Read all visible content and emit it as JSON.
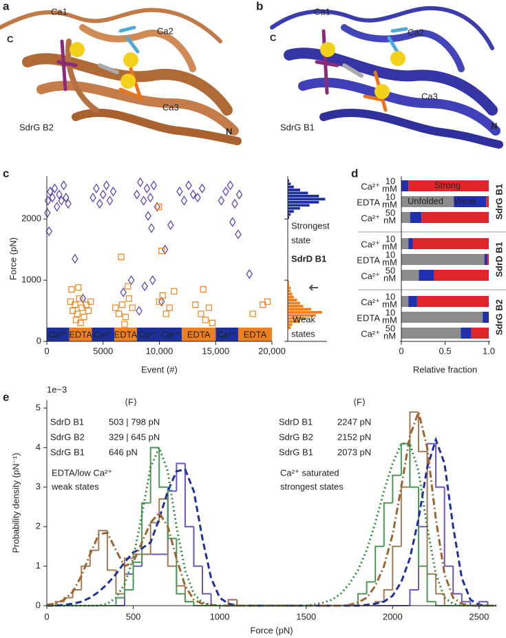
{
  "structures": [
    {
      "panel": "a",
      "labels": [
        {
          "text": "Ca1",
          "color": "#8b2a7a"
        },
        {
          "text": "Ca2",
          "color": "#4fa9d6"
        },
        {
          "text": "C",
          "color": "#d8251d"
        },
        {
          "text": "Ca3",
          "color": "#e8741d"
        },
        {
          "text": "SdrG B2",
          "color": "#a0602e"
        },
        {
          "text": "N",
          "color": "#3a3a9a"
        }
      ]
    },
    {
      "panel": "b",
      "labels": [
        {
          "text": "Ca1",
          "color": "#8b2a7a"
        },
        {
          "text": "Ca2",
          "color": "#4fa9d6"
        },
        {
          "text": "C",
          "color": "#d8251d"
        },
        {
          "text": "Ca3",
          "color": "#e8741d"
        },
        {
          "text": "SdrG B1",
          "color": "#3a3a9a"
        },
        {
          "text": "N",
          "color": "#3a3a9a"
        }
      ]
    }
  ],
  "chart_data": [
    {
      "type": "scatter",
      "panel": "c",
      "xlabel": "Event (#)",
      "ylabel": "Force (pN)",
      "xlim": [
        0,
        20000
      ],
      "ylim": [
        0,
        2700
      ],
      "xticks": [
        0,
        5000,
        {
          "value": 10000,
          "label": "10,000"
        },
        {
          "value": 15000,
          "label": "15,000"
        },
        {
          "value": 20000,
          "label": "20,000"
        }
      ],
      "yticks": [
        0,
        1000,
        2000
      ],
      "series": [
        {
          "color": "#5a48b5",
          "marker": "diamond",
          "x": [
            100,
            300,
            500,
            700,
            900,
            1100,
            1300,
            1500,
            1700,
            1900,
            200,
            50,
            4100,
            4400,
            4700,
            5000,
            5300,
            5600,
            5900,
            8000,
            8300,
            8600,
            8900,
            9200,
            9500,
            9800,
            9000,
            9300,
            11800,
            12200,
            12600,
            13000,
            13400,
            13800,
            15500,
            15900,
            16300,
            16700,
            17100,
            16500,
            17000,
            6800,
            7500,
            8200,
            8700,
            9400,
            10200,
            10500,
            18000,
            3200,
            2500,
            11000
          ],
          "y": [
            2300,
            2450,
            2350,
            2500,
            2200,
            2400,
            2300,
            2550,
            2350,
            2250,
            1800,
            2100,
            2350,
            2500,
            2250,
            2400,
            2550,
            2300,
            2450,
            2400,
            2600,
            2300,
            2500,
            2350,
            2550,
            2200,
            2050,
            1850,
            2450,
            2300,
            2550,
            2400,
            2350,
            2500,
            2300,
            2450,
            2550,
            2250,
            2400,
            1950,
            1750,
            800,
            1000,
            500,
            900,
            1000,
            650,
            1500,
            1100,
            700,
            1350,
            1900
          ]
        },
        {
          "color": "#f08a24",
          "marker": "square",
          "x": [
            2100,
            2300,
            2500,
            2700,
            2900,
            3100,
            3300,
            3500,
            3700,
            3900,
            2200,
            2800,
            3000,
            2600,
            6100,
            6400,
            6700,
            7000,
            7300,
            7600,
            6600,
            7200,
            6900,
            10000,
            10300,
            10600,
            10900,
            10200,
            11300,
            13200,
            13700,
            14100,
            14400,
            13900,
            14700,
            18300,
            19200,
            19600,
            9950
          ],
          "y": [
            650,
            500,
            600,
            450,
            700,
            550,
            400,
            600,
            500,
            650,
            850,
            880,
            300,
            350,
            550,
            450,
            600,
            400,
            700,
            550,
            1380,
            900,
            280,
            650,
            750,
            450,
            550,
            1480,
            820,
            600,
            450,
            350,
            550,
            850,
            300,
            450,
            600,
            650,
            2200
          ]
        }
      ],
      "conditions": [
        {
          "label": "Ca²⁺",
          "start": 0,
          "end": 2000,
          "color": "#1c2f9a"
        },
        {
          "label": "EDTA",
          "start": 2000,
          "end": 4000,
          "color": "#f07f1d"
        },
        {
          "label": "Ca²⁺",
          "start": 4000,
          "end": 6000,
          "color": "#1c2f9a"
        },
        {
          "label": "EDTA",
          "start": 6000,
          "end": 8000,
          "color": "#f07f1d"
        },
        {
          "label": "Ca²⁺",
          "start": 8000,
          "end": 10000,
          "color": "#1c2f9a"
        },
        {
          "label": "Ca²⁺",
          "start": 10000,
          "end": 12000,
          "color": "#1c2f9a"
        },
        {
          "label": "EDTA",
          "start": 12000,
          "end": 15000,
          "color": "#f07f1d"
        },
        {
          "label": "Ca²⁺",
          "start": 15000,
          "end": 17000,
          "color": "#1c2f9a"
        },
        {
          "label": "EDTA",
          "start": 17000,
          "end": 20000,
          "color": "#f07f1d"
        }
      ]
    },
    {
      "type": "histogram",
      "orientation": "horizontal",
      "xlim": [
        0,
        25
      ],
      "ylim": [
        0,
        2700
      ],
      "annotations": [
        "Strongest",
        "state",
        "SdrD B1",
        "Weak",
        "states"
      ],
      "series": [
        {
          "color": "#f07f1d",
          "bins": [
            200,
            250,
            300,
            350,
            400,
            450,
            500,
            550,
            600,
            650,
            700,
            750,
            800,
            850,
            900,
            950,
            1000
          ],
          "values": [
            2,
            3,
            8,
            12,
            18,
            22,
            15,
            10,
            8,
            6,
            4,
            3,
            2,
            2,
            1,
            1
          ]
        },
        {
          "color": "#1c2f9a",
          "bins": [
            2000,
            2050,
            2100,
            2150,
            2200,
            2250,
            2300,
            2350,
            2400,
            2450,
            2500,
            2550,
            2600,
            2650
          ],
          "values": [
            1,
            2,
            4,
            8,
            14,
            20,
            24,
            20,
            13,
            8,
            4,
            2,
            1
          ]
        }
      ]
    },
    {
      "type": "bar",
      "orientation": "horizontal",
      "stacked": true,
      "panel": "d",
      "xlabel": "Relative fraction",
      "xlim": [
        0,
        1
      ],
      "xticks": [
        0,
        0.5,
        {
          "value": 1,
          "label": "1.0"
        }
      ],
      "categories": [
        "Ca²⁺",
        "EDTA",
        "Ca²⁺",
        "Ca²⁺",
        "EDTA",
        "Ca²⁺",
        "Ca²⁺",
        "EDTA",
        "Ca²⁺"
      ],
      "concentrations": [
        10,
        10,
        50,
        10,
        10,
        50,
        10,
        10,
        50
      ],
      "units": [
        "mM",
        "mM",
        "nM",
        "mM",
        "mM",
        "nM",
        "mM",
        "mM",
        "nM"
      ],
      "groups": [
        {
          "name": "SdrG B1",
          "color": "#2f9a4a"
        },
        {
          "name": "SdrD B1",
          "color": "#5a48b5"
        },
        {
          "name": "SdrG B2",
          "color": "#9b6433"
        }
      ],
      "series": [
        {
          "name": "Unfolded",
          "color": "#8c8c8c",
          "values": [
            0,
            0.6,
            0.1,
            0.08,
            0.95,
            0.2,
            0.08,
            0.93,
            0.68
          ]
        },
        {
          "name": "Weak",
          "color": "#1f2fb0",
          "values": [
            0.08,
            0.37,
            0.13,
            0.05,
            0.03,
            0.17,
            0.1,
            0.07,
            0.12
          ]
        },
        {
          "name": "Strong",
          "color": "#e0262a",
          "values": [
            0.92,
            0.03,
            0.77,
            0.87,
            0.02,
            0.63,
            0.82,
            0,
            0.2
          ]
        }
      ]
    },
    {
      "type": "histogram",
      "panel": "e",
      "xlabel": "Force (pN)",
      "ylabel": "Probability density (pN⁻¹)",
      "y_multiplier": "1e−3",
      "xlim": [
        0,
        2600
      ],
      "ylim": [
        0,
        5.2
      ],
      "xticks": [
        0,
        500,
        1000,
        1500,
        2000,
        2500
      ],
      "yticks": [
        0,
        1,
        2,
        3,
        4,
        5
      ],
      "bins": [
        0,
        50,
        100,
        150,
        200,
        250,
        300,
        350,
        400,
        450,
        500,
        550,
        600,
        650,
        700,
        750,
        800,
        850,
        900,
        950,
        1000,
        1050,
        1100,
        1150,
        1200,
        1250,
        1300,
        1350,
        1400,
        1450,
        1500,
        1550,
        1600,
        1650,
        1700,
        1750,
        1800,
        1850,
        1900,
        1950,
        2000,
        2050,
        2100,
        2150,
        2200,
        2250,
        2300,
        2350,
        2400,
        2450,
        2500,
        2550,
        2600
      ],
      "series": [
        {
          "name": "SdrD B1",
          "color": "#6a55c0",
          "values": [
            0,
            0,
            0,
            0,
            0,
            0,
            0,
            0,
            0,
            0.8,
            1.0,
            1.3,
            1.3,
            1.3,
            2.9,
            3.6,
            2.0,
            1.0,
            0.3,
            0,
            0,
            0.15,
            0,
            0,
            0,
            0,
            0,
            0,
            0,
            0,
            0,
            0,
            0,
            0,
            0,
            0,
            0,
            0,
            0,
            0,
            0,
            0,
            0.4,
            2.0,
            4.1,
            3.0,
            1.0,
            0.3,
            0.1,
            0,
            0.1,
            0
          ]
        },
        {
          "name": "SdrG B2",
          "color": "#a67a55",
          "values": [
            0,
            0.1,
            0.2,
            0.4,
            1.0,
            1.4,
            1.9,
            0.9,
            0.3,
            1.2,
            1.3,
            1.3,
            2.1,
            2.7,
            1.0,
            0.5,
            0.1,
            0,
            0,
            0,
            0,
            0.15,
            0,
            0,
            0,
            0,
            0,
            0,
            0,
            0,
            0,
            0,
            0,
            0,
            0,
            0,
            0,
            0,
            0.1,
            0.4,
            1.5,
            3.0,
            4.9,
            3.9,
            0.8,
            0.3,
            0,
            0,
            0,
            0,
            0,
            0
          ]
        },
        {
          "name": "SdrG B1",
          "color": "#4a9a55",
          "values": [
            0,
            0,
            0,
            0,
            0,
            0,
            0,
            0,
            0.2,
            0.4,
            1.1,
            2.6,
            4.0,
            3.0,
            1.7,
            0.3,
            0.1,
            0,
            0,
            0,
            0,
            0,
            0,
            0,
            0,
            0,
            0,
            0,
            0,
            0,
            0,
            0,
            0,
            0,
            0,
            0,
            0.3,
            0.6,
            1.5,
            2.6,
            3.3,
            4.1,
            3.0,
            1.0,
            0.1,
            0,
            0,
            0,
            0,
            0,
            0,
            0
          ]
        }
      ],
      "fits": {
        "x": [
          0,
          50,
          100,
          150,
          200,
          250,
          300,
          350,
          400,
          450,
          500,
          550,
          600,
          650,
          700,
          750,
          800,
          850,
          900,
          950,
          1000,
          1050,
          1100,
          1150,
          1200,
          1250,
          1300,
          1350,
          1400,
          1450,
          1500,
          1550,
          1600,
          1650,
          1700,
          1750,
          1800,
          1850,
          1900,
          1950,
          2000,
          2050,
          2100,
          2150,
          2200,
          2250,
          2300,
          2350,
          2400,
          2450,
          2500,
          2550,
          2600
        ],
        "series": [
          {
            "color": "#1f2fa0",
            "dash": "dashed",
            "values": [
              0,
              0,
              0.02,
              0.05,
              0.1,
              0.2,
              0.35,
              0.55,
              0.8,
              1.1,
              1.35,
              1.45,
              1.6,
              2.2,
              2.9,
              3.4,
              3.45,
              2.9,
              1.7,
              0.7,
              0.2,
              0.05,
              0,
              0,
              0,
              0,
              0,
              0,
              0,
              0,
              0,
              0,
              0,
              0,
              0,
              0,
              0,
              0.02,
              0.05,
              0.1,
              0.25,
              0.6,
              1.2,
              2.2,
              3.5,
              4.2,
              3.6,
              2.0,
              0.7,
              0.15,
              0.02,
              0,
              0
            ]
          },
          {
            "color": "#9b6433",
            "dash": "dashdot",
            "values": [
              0.02,
              0.05,
              0.15,
              0.35,
              0.75,
              1.3,
              1.8,
              1.85,
              1.4,
              1.0,
              1.1,
              1.6,
              2.1,
              2.35,
              2.0,
              1.2,
              0.5,
              0.15,
              0.05,
              0.02,
              0,
              0,
              0,
              0,
              0,
              0,
              0,
              0,
              0,
              0,
              0,
              0,
              0,
              0,
              0,
              0.02,
              0.08,
              0.2,
              0.5,
              1.0,
              1.8,
              3.0,
              4.3,
              4.9,
              4.0,
              2.2,
              0.8,
              0.2,
              0.05,
              0,
              0,
              0,
              0
            ]
          },
          {
            "color": "#2a8a3a",
            "dash": "dotted",
            "values": [
              0,
              0,
              0,
              0,
              0,
              0,
              0,
              0.05,
              0.2,
              0.55,
              1.2,
              2.3,
              3.5,
              4.0,
              3.4,
              2.0,
              0.9,
              0.3,
              0.08,
              0.02,
              0,
              0,
              0,
              0,
              0,
              0,
              0,
              0,
              0,
              0,
              0,
              0.03,
              0.08,
              0.15,
              0.3,
              0.55,
              0.9,
              1.4,
              2.1,
              2.9,
              3.6,
              4.1,
              4.1,
              3.4,
              2.0,
              0.8,
              0.2,
              0.05,
              0,
              0,
              0,
              0,
              0
            ]
          }
        ]
      },
      "annotations": [
        {
          "header": "⟨F⟩",
          "means": [
            "503 | 798 pN",
            "329 | 645 pN",
            "646 pN"
          ],
          "note": [
            "EDTA/low Ca²⁺",
            "weak states"
          ]
        },
        {
          "header": "⟨F⟩",
          "means": [
            "2247 pN",
            "2152 pN",
            "2073 pN"
          ],
          "note": [
            "Ca²⁺ saturated",
            "strongest states"
          ]
        }
      ]
    }
  ]
}
